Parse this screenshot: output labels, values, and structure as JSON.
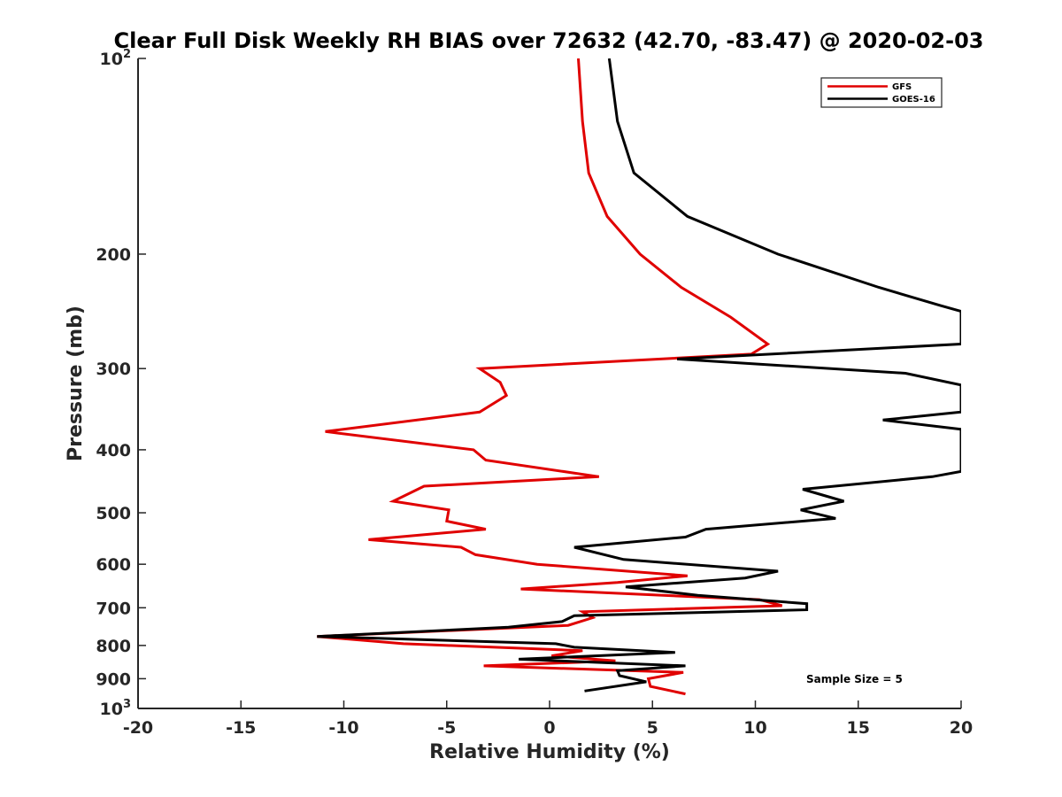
{
  "chart_data": {
    "type": "line",
    "title": "Clear Full Disk Weekly RH BIAS over 72632 (42.70, -83.47) @ 2020-02-03",
    "xlabel": "Relative Humidity (%)",
    "ylabel": "Pressure (mb)",
    "xlim": [
      -20,
      20
    ],
    "ylim": [
      100,
      1000
    ],
    "y_scale": "log",
    "y_reversed": true,
    "grid": false,
    "legend_position": "top-right",
    "x_ticks": [
      "-20",
      "-15",
      "-10",
      "-5",
      "0",
      "5",
      "10",
      "15",
      "20"
    ],
    "x_tick_values": [
      -20,
      -15,
      -10,
      -5,
      0,
      5,
      10,
      15,
      20
    ],
    "y_ticks": [
      {
        "value": 100,
        "base": "10",
        "exp": "2"
      },
      {
        "value": 200,
        "base": "200",
        "exp": ""
      },
      {
        "value": 300,
        "base": "300",
        "exp": ""
      },
      {
        "value": 400,
        "base": "400",
        "exp": ""
      },
      {
        "value": 500,
        "base": "500",
        "exp": ""
      },
      {
        "value": 600,
        "base": "600",
        "exp": ""
      },
      {
        "value": 700,
        "base": "700",
        "exp": ""
      },
      {
        "value": 800,
        "base": "800",
        "exp": ""
      },
      {
        "value": 900,
        "base": "900",
        "exp": ""
      },
      {
        "value": 1000,
        "base": "10",
        "exp": "3"
      }
    ],
    "annotation": "Sample Size = 5",
    "series": [
      {
        "name": "GFS",
        "color": "#e00000",
        "points": [
          [
            1.4,
            100
          ],
          [
            1.6,
            125
          ],
          [
            1.9,
            150
          ],
          [
            2.8,
            175
          ],
          [
            4.4,
            200
          ],
          [
            6.4,
            225
          ],
          [
            8.8,
            250
          ],
          [
            10.6,
            275
          ],
          [
            9.8,
            285
          ],
          [
            -3.4,
            300
          ],
          [
            -2.4,
            315
          ],
          [
            -2.1,
            330
          ],
          [
            -3.4,
            350
          ],
          [
            -10.9,
            375
          ],
          [
            -3.7,
            400
          ],
          [
            -3.1,
            415
          ],
          [
            2.4,
            440
          ],
          [
            -6.1,
            455
          ],
          [
            -7.6,
            480
          ],
          [
            -4.9,
            495
          ],
          [
            -5.0,
            515
          ],
          [
            -3.1,
            530
          ],
          [
            -8.8,
            550
          ],
          [
            -4.3,
            565
          ],
          [
            -3.6,
            580
          ],
          [
            -0.6,
            600
          ],
          [
            6.7,
            625
          ],
          [
            3.3,
            640
          ],
          [
            -1.4,
            655
          ],
          [
            10.2,
            680
          ],
          [
            11.3,
            695
          ],
          [
            1.6,
            710
          ],
          [
            2.1,
            725
          ],
          [
            0.9,
            745
          ],
          [
            -11.3,
            775
          ],
          [
            -7.1,
            795
          ],
          [
            1.6,
            815
          ],
          [
            0.1,
            830
          ],
          [
            3.2,
            845
          ],
          [
            -3.2,
            860
          ],
          [
            6.5,
            880
          ],
          [
            4.8,
            900
          ],
          [
            4.9,
            925
          ],
          [
            6.6,
            950
          ]
        ]
      },
      {
        "name": "GOES-16",
        "color": "#000000",
        "points": [
          [
            2.9,
            100
          ],
          [
            3.3,
            125
          ],
          [
            4.1,
            150
          ],
          [
            6.7,
            175
          ],
          [
            11.1,
            200
          ],
          [
            16.0,
            225
          ],
          [
            19.0,
            240
          ],
          [
            20.0,
            245
          ],
          [
            20.0,
            275
          ],
          [
            6.2,
            290
          ],
          [
            17.3,
            305
          ],
          [
            20.0,
            318
          ],
          [
            20.0,
            350
          ],
          [
            16.2,
            360
          ],
          [
            20.0,
            372
          ],
          [
            20.0,
            432
          ],
          [
            18.6,
            440
          ],
          [
            12.3,
            460
          ],
          [
            14.3,
            480
          ],
          [
            12.2,
            495
          ],
          [
            13.9,
            510
          ],
          [
            7.6,
            530
          ],
          [
            6.6,
            545
          ],
          [
            1.2,
            565
          ],
          [
            3.6,
            590
          ],
          [
            11.1,
            615
          ],
          [
            9.5,
            630
          ],
          [
            3.7,
            650
          ],
          [
            7.2,
            670
          ],
          [
            12.5,
            690
          ],
          [
            12.5,
            705
          ],
          [
            1.2,
            720
          ],
          [
            0.6,
            735
          ],
          [
            -2.0,
            750
          ],
          [
            -11.3,
            775
          ],
          [
            0.3,
            795
          ],
          [
            1.2,
            805
          ],
          [
            6.1,
            820
          ],
          [
            -1.5,
            840
          ],
          [
            6.6,
            860
          ],
          [
            3.3,
            875
          ],
          [
            3.4,
            890
          ],
          [
            4.7,
            910
          ],
          [
            1.7,
            940
          ]
        ]
      }
    ]
  }
}
